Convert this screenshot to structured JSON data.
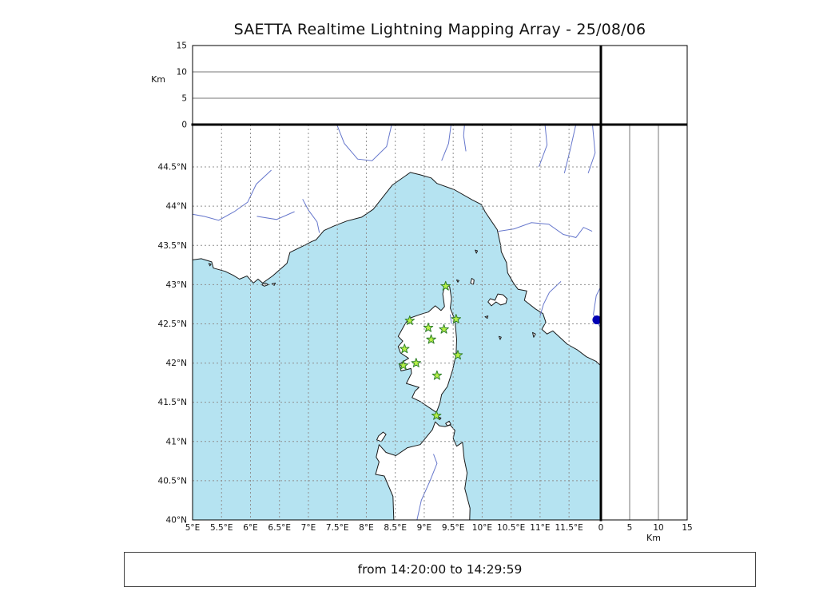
{
  "title": "SAETTA Realtime Lightning Mapping Array - 25/08/06",
  "footer": {
    "time_range": "from 14:20:00 to 14:29:59"
  },
  "colors": {
    "sea": "#b5e3f1",
    "land": "#ffffff",
    "coast": "#1a1a1a",
    "river": "#6677cc",
    "grid": "#909090",
    "panel_grid": "#777777",
    "frame": "#000000",
    "station_fill": "#b7f046",
    "station_stroke": "#2f7f2a",
    "event_dot": "#0000b4"
  },
  "axes": {
    "map": {
      "lon_min": 5.0,
      "lon_max": 12.05,
      "lat_min": 40.0,
      "lat_max": 45.04,
      "lon_ticks": [
        {
          "v": 5,
          "label": "5°E"
        },
        {
          "v": 5.5,
          "label": "5.5°E"
        },
        {
          "v": 6,
          "label": "6°E"
        },
        {
          "v": 6.5,
          "label": "6.5°E"
        },
        {
          "v": 7,
          "label": "7°E"
        },
        {
          "v": 7.5,
          "label": "7.5°E"
        },
        {
          "v": 8,
          "label": "8°E"
        },
        {
          "v": 8.5,
          "label": "8.5°E"
        },
        {
          "v": 9,
          "label": "9°E"
        },
        {
          "v": 9.5,
          "label": "9.5°E"
        },
        {
          "v": 10,
          "label": "10°E"
        },
        {
          "v": 10.5,
          "label": "10.5°E"
        },
        {
          "v": 11,
          "label": "11°E"
        },
        {
          "v": 11.5,
          "label": "11.5°E"
        }
      ],
      "lat_ticks": [
        {
          "v": 40,
          "label": "40°N"
        },
        {
          "v": 40.5,
          "label": "40.5°N"
        },
        {
          "v": 41,
          "label": "41°N"
        },
        {
          "v": 41.5,
          "label": "41.5°N"
        },
        {
          "v": 42,
          "label": "42°N"
        },
        {
          "v": 42.5,
          "label": "42.5°N"
        },
        {
          "v": 43,
          "label": "43°N"
        },
        {
          "v": 43.5,
          "label": "43.5°N"
        },
        {
          "v": 44,
          "label": "44°N"
        },
        {
          "v": 44.5,
          "label": "44.5°N"
        }
      ]
    },
    "altitude": {
      "label": "Km",
      "min": 0,
      "max": 15,
      "ticks": [
        {
          "v": 0,
          "label": "0"
        },
        {
          "v": 5,
          "label": "5"
        },
        {
          "v": 10,
          "label": "10"
        },
        {
          "v": 15,
          "label": "15"
        }
      ]
    }
  },
  "stations": [
    [
      9.37,
      42.98
    ],
    [
      8.75,
      42.54
    ],
    [
      9.07,
      42.45
    ],
    [
      9.55,
      42.56
    ],
    [
      9.34,
      42.43
    ],
    [
      9.12,
      42.3
    ],
    [
      8.66,
      42.18
    ],
    [
      9.58,
      42.1
    ],
    [
      8.64,
      41.97
    ],
    [
      8.86,
      42.0
    ],
    [
      9.22,
      41.84
    ],
    [
      9.21,
      41.33
    ]
  ],
  "events": [
    {
      "lon": 11.98,
      "lat": 42.55
    }
  ],
  "geography": {
    "land": [
      {
        "name": "mainland",
        "pts": [
          [
            4.95,
            45.1
          ],
          [
            4.95,
            43.31
          ],
          [
            5.15,
            43.33
          ],
          [
            5.33,
            43.29
          ],
          [
            5.36,
            43.21
          ],
          [
            5.56,
            43.17
          ],
          [
            5.7,
            43.12
          ],
          [
            5.81,
            43.07
          ],
          [
            5.94,
            43.11
          ],
          [
            6.05,
            43.02
          ],
          [
            6.13,
            43.07
          ],
          [
            6.21,
            43.02
          ],
          [
            6.38,
            43.11
          ],
          [
            6.63,
            43.27
          ],
          [
            6.68,
            43.41
          ],
          [
            6.93,
            43.5
          ],
          [
            7.06,
            43.55
          ],
          [
            7.13,
            43.57
          ],
          [
            7.27,
            43.69
          ],
          [
            7.45,
            43.75
          ],
          [
            7.66,
            43.81
          ],
          [
            7.92,
            43.86
          ],
          [
            8.12,
            43.96
          ],
          [
            8.45,
            44.27
          ],
          [
            8.76,
            44.43
          ],
          [
            8.93,
            44.4
          ],
          [
            9.12,
            44.36
          ],
          [
            9.22,
            44.29
          ],
          [
            9.52,
            44.21
          ],
          [
            9.83,
            44.08
          ],
          [
            9.99,
            44.02
          ],
          [
            10.05,
            43.93
          ],
          [
            10.14,
            43.83
          ],
          [
            10.26,
            43.7
          ],
          [
            10.29,
            43.6
          ],
          [
            10.32,
            43.5
          ],
          [
            10.33,
            43.42
          ],
          [
            10.42,
            43.28
          ],
          [
            10.44,
            43.15
          ],
          [
            10.54,
            43.02
          ],
          [
            10.62,
            42.94
          ],
          [
            10.77,
            42.92
          ],
          [
            10.73,
            42.8
          ],
          [
            10.92,
            42.69
          ],
          [
            11.05,
            42.63
          ],
          [
            11.1,
            42.52
          ],
          [
            11.03,
            42.43
          ],
          [
            11.12,
            42.37
          ],
          [
            11.22,
            42.41
          ],
          [
            11.47,
            42.24
          ],
          [
            11.64,
            42.17
          ],
          [
            11.8,
            42.08
          ],
          [
            11.97,
            42.02
          ],
          [
            12.1,
            41.93
          ],
          [
            12.1,
            45.1
          ]
        ]
      },
      {
        "name": "corsica",
        "pts": [
          [
            9.36,
            43.02
          ],
          [
            9.44,
            42.97
          ],
          [
            9.47,
            42.82
          ],
          [
            9.45,
            42.7
          ],
          [
            9.53,
            42.55
          ],
          [
            9.56,
            42.3
          ],
          [
            9.55,
            42.11
          ],
          [
            9.49,
            41.91
          ],
          [
            9.4,
            41.7
          ],
          [
            9.3,
            41.6
          ],
          [
            9.27,
            41.49
          ],
          [
            9.21,
            41.37
          ],
          [
            9.09,
            41.43
          ],
          [
            8.93,
            41.51
          ],
          [
            8.79,
            41.56
          ],
          [
            8.84,
            41.64
          ],
          [
            8.91,
            41.69
          ],
          [
            8.69,
            41.74
          ],
          [
            8.78,
            41.87
          ],
          [
            8.77,
            41.93
          ],
          [
            8.6,
            41.9
          ],
          [
            8.57,
            41.99
          ],
          [
            8.73,
            42.06
          ],
          [
            8.59,
            42.13
          ],
          [
            8.55,
            42.21
          ],
          [
            8.63,
            42.28
          ],
          [
            8.55,
            42.34
          ],
          [
            8.67,
            42.5
          ],
          [
            8.74,
            42.57
          ],
          [
            8.93,
            42.62
          ],
          [
            9.07,
            42.65
          ],
          [
            9.19,
            42.73
          ],
          [
            9.29,
            42.67
          ],
          [
            9.35,
            42.72
          ],
          [
            9.32,
            42.88
          ]
        ]
      },
      {
        "name": "sardinia",
        "pts": [
          [
            8.48,
            39.9
          ],
          [
            8.46,
            40.3
          ],
          [
            8.31,
            40.56
          ],
          [
            8.16,
            40.58
          ],
          [
            8.22,
            40.74
          ],
          [
            8.17,
            40.8
          ],
          [
            8.22,
            40.96
          ],
          [
            8.34,
            40.86
          ],
          [
            8.51,
            40.82
          ],
          [
            8.71,
            40.92
          ],
          [
            8.93,
            40.96
          ],
          [
            9.14,
            41.15
          ],
          [
            9.19,
            41.25
          ],
          [
            9.26,
            41.2
          ],
          [
            9.36,
            41.19
          ],
          [
            9.45,
            41.21
          ],
          [
            9.53,
            41.14
          ],
          [
            9.5,
            41.04
          ],
          [
            9.56,
            40.94
          ],
          [
            9.66,
            40.99
          ],
          [
            9.69,
            40.78
          ],
          [
            9.74,
            40.6
          ],
          [
            9.7,
            40.4
          ],
          [
            9.79,
            40.15
          ],
          [
            9.78,
            39.9
          ]
        ]
      },
      {
        "name": "elba",
        "pts": [
          [
            10.1,
            42.78
          ],
          [
            10.14,
            42.82
          ],
          [
            10.22,
            42.8
          ],
          [
            10.27,
            42.88
          ],
          [
            10.36,
            42.87
          ],
          [
            10.43,
            42.82
          ],
          [
            10.41,
            42.76
          ],
          [
            10.32,
            42.74
          ],
          [
            10.24,
            42.78
          ],
          [
            10.16,
            42.73
          ]
        ]
      },
      {
        "name": "capraia",
        "pts": [
          [
            9.82,
            43.08
          ],
          [
            9.86,
            43.06
          ],
          [
            9.85,
            43.0
          ],
          [
            9.8,
            43.02
          ]
        ]
      },
      {
        "name": "gorgona",
        "pts": [
          [
            9.88,
            43.44
          ],
          [
            9.92,
            43.43
          ],
          [
            9.9,
            43.4
          ]
        ]
      },
      {
        "name": "islet-north-cap",
        "pts": [
          [
            9.56,
            43.06
          ],
          [
            9.6,
            43.05
          ],
          [
            9.58,
            43.03
          ]
        ]
      },
      {
        "name": "pianosa",
        "pts": [
          [
            10.05,
            42.59
          ],
          [
            10.1,
            42.6
          ],
          [
            10.09,
            42.57
          ]
        ]
      },
      {
        "name": "montecristo",
        "pts": [
          [
            10.29,
            42.34
          ],
          [
            10.33,
            42.33
          ],
          [
            10.31,
            42.3
          ]
        ]
      },
      {
        "name": "giglio",
        "pts": [
          [
            10.87,
            42.39
          ],
          [
            10.92,
            42.37
          ],
          [
            10.89,
            42.33
          ]
        ]
      },
      {
        "name": "asinara",
        "pts": [
          [
            8.18,
            41.02
          ],
          [
            8.26,
            41.0
          ],
          [
            8.34,
            41.09
          ],
          [
            8.29,
            41.12
          ],
          [
            8.21,
            41.07
          ]
        ]
      },
      {
        "name": "maddalena",
        "pts": [
          [
            9.37,
            41.23
          ],
          [
            9.43,
            41.26
          ],
          [
            9.46,
            41.22
          ],
          [
            9.4,
            41.2
          ]
        ]
      },
      {
        "name": "lavezzi",
        "pts": [
          [
            9.25,
            41.31
          ],
          [
            9.29,
            41.3
          ],
          [
            9.27,
            41.28
          ]
        ]
      },
      {
        "name": "porquerolles",
        "pts": [
          [
            6.19,
            43.0
          ],
          [
            6.26,
            43.02
          ],
          [
            6.31,
            43.0
          ],
          [
            6.24,
            42.98
          ]
        ]
      },
      {
        "name": "port-cros",
        "pts": [
          [
            6.37,
            43.01
          ],
          [
            6.43,
            43.02
          ],
          [
            6.41,
            42.99
          ]
        ]
      },
      {
        "name": "frioul",
        "pts": [
          [
            5.28,
            43.27
          ],
          [
            5.32,
            43.26
          ],
          [
            5.3,
            43.24
          ]
        ]
      }
    ],
    "rivers": [
      {
        "name": "durance",
        "pts": [
          [
            6.36,
            44.46
          ],
          [
            6.1,
            44.28
          ],
          [
            5.95,
            44.05
          ],
          [
            5.72,
            43.93
          ],
          [
            5.45,
            43.82
          ],
          [
            5.2,
            43.87
          ],
          [
            4.98,
            43.9
          ]
        ]
      },
      {
        "name": "verdon",
        "pts": [
          [
            6.76,
            43.93
          ],
          [
            6.45,
            43.83
          ],
          [
            6.11,
            43.87
          ]
        ]
      },
      {
        "name": "var",
        "pts": [
          [
            6.9,
            44.09
          ],
          [
            7.0,
            43.95
          ],
          [
            7.15,
            43.8
          ],
          [
            7.19,
            43.66
          ]
        ]
      },
      {
        "name": "tanaro",
        "pts": [
          [
            7.47,
            45.08
          ],
          [
            7.62,
            44.8
          ],
          [
            7.85,
            44.6
          ],
          [
            8.1,
            44.58
          ],
          [
            8.35,
            44.76
          ],
          [
            8.45,
            45.08
          ]
        ]
      },
      {
        "name": "trebbia",
        "pts": [
          [
            9.3,
            44.58
          ],
          [
            9.42,
            44.8
          ],
          [
            9.47,
            45.08
          ]
        ]
      },
      {
        "name": "taro",
        "pts": [
          [
            9.72,
            44.7
          ],
          [
            9.68,
            44.9
          ],
          [
            9.7,
            45.08
          ]
        ]
      },
      {
        "name": "secchia",
        "pts": [
          [
            10.98,
            44.5
          ],
          [
            11.12,
            44.78
          ],
          [
            11.08,
            45.08
          ]
        ]
      },
      {
        "name": "reno",
        "pts": [
          [
            11.42,
            44.42
          ],
          [
            11.52,
            44.72
          ],
          [
            11.63,
            45.08
          ]
        ]
      },
      {
        "name": "panaro",
        "pts": [
          [
            11.83,
            44.42
          ],
          [
            11.95,
            44.68
          ],
          [
            11.9,
            45.08
          ]
        ]
      },
      {
        "name": "arno",
        "pts": [
          [
            10.28,
            43.68
          ],
          [
            10.55,
            43.71
          ],
          [
            10.85,
            43.79
          ],
          [
            11.15,
            43.77
          ],
          [
            11.4,
            43.64
          ],
          [
            11.62,
            43.6
          ],
          [
            11.75,
            43.73
          ],
          [
            11.9,
            43.68
          ]
        ]
      },
      {
        "name": "ombrone",
        "pts": [
          [
            11.36,
            43.04
          ],
          [
            11.16,
            42.9
          ],
          [
            11.06,
            42.75
          ],
          [
            11.0,
            42.6
          ]
        ]
      },
      {
        "name": "tiber",
        "pts": [
          [
            12.08,
            42.4
          ],
          [
            11.92,
            42.62
          ],
          [
            11.97,
            42.86
          ],
          [
            12.08,
            43.02
          ]
        ]
      },
      {
        "name": "coghinas",
        "pts": [
          [
            8.85,
            39.92
          ],
          [
            8.95,
            40.25
          ],
          [
            9.1,
            40.5
          ],
          [
            9.22,
            40.72
          ],
          [
            9.16,
            40.84
          ]
        ]
      },
      {
        "name": "golo-lagoon",
        "pts": [
          [
            9.45,
            42.62
          ],
          [
            9.47,
            42.5
          ]
        ]
      }
    ]
  }
}
